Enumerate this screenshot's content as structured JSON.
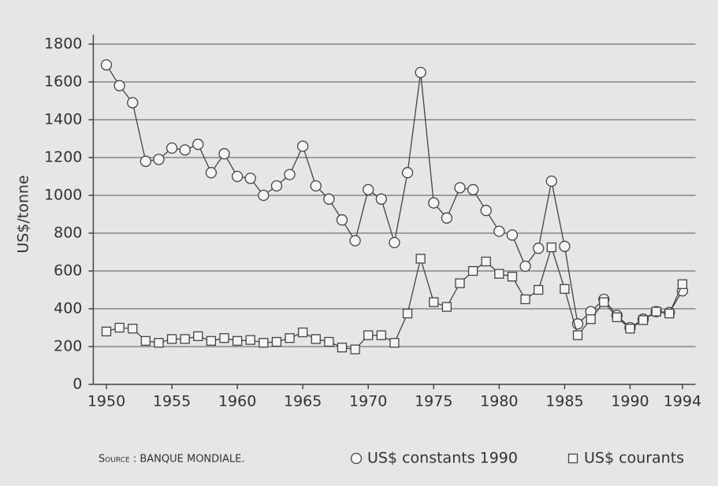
{
  "chart_data": {
    "type": "line",
    "y_label": "US$/tonne",
    "source": "Source : BANQUE MONDIALE.",
    "x": [
      1950,
      1951,
      1952,
      1953,
      1954,
      1955,
      1956,
      1957,
      1958,
      1959,
      1960,
      1961,
      1962,
      1963,
      1964,
      1965,
      1966,
      1967,
      1968,
      1969,
      1970,
      1971,
      1972,
      1973,
      1974,
      1975,
      1976,
      1977,
      1978,
      1979,
      1980,
      1981,
      1982,
      1983,
      1984,
      1985,
      1986,
      1987,
      1988,
      1989,
      1990,
      1991,
      1992,
      1993,
      1994
    ],
    "series": [
      {
        "name": "US$ constants 1990",
        "marker": "circle",
        "color": "#444444",
        "values": [
          1690,
          1580,
          1490,
          1180,
          1190,
          1250,
          1240,
          1270,
          1120,
          1220,
          1100,
          1090,
          1000,
          1050,
          1110,
          1260,
          1050,
          980,
          870,
          760,
          1030,
          980,
          750,
          1120,
          1650,
          960,
          880,
          1040,
          1030,
          920,
          810,
          790,
          625,
          720,
          1075,
          730,
          320,
          385,
          450,
          365,
          300,
          345,
          385,
          380,
          495
        ]
      },
      {
        "name": "US$ courants",
        "marker": "square",
        "color": "#444444",
        "values": [
          280,
          300,
          295,
          230,
          220,
          240,
          240,
          255,
          230,
          245,
          230,
          235,
          220,
          225,
          245,
          275,
          240,
          225,
          195,
          185,
          260,
          260,
          220,
          375,
          665,
          435,
          410,
          535,
          600,
          650,
          585,
          570,
          450,
          500,
          725,
          505,
          260,
          345,
          435,
          355,
          295,
          340,
          385,
          375,
          530
        ]
      }
    ],
    "xlim": [
      1949,
      1995
    ],
    "xticks": [
      1950,
      1955,
      1960,
      1965,
      1970,
      1975,
      1980,
      1985,
      1990,
      1994
    ],
    "ylim": [
      0,
      1800
    ],
    "yticks": [
      0,
      200,
      400,
      600,
      800,
      1000,
      1200,
      1400,
      1600,
      1800
    ],
    "grid": true
  }
}
